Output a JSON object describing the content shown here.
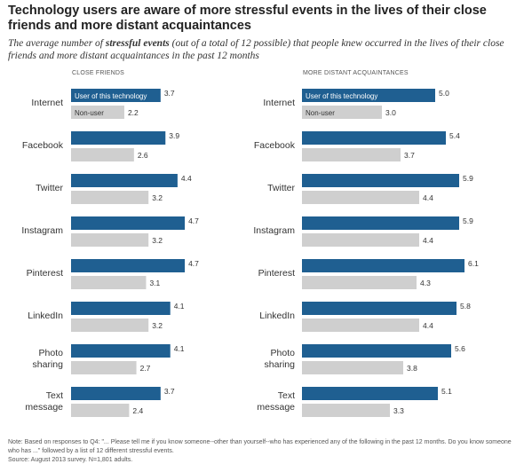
{
  "title": "Technology users are aware of more stressful events in the lives of their close friends and more distant acquaintances",
  "subtitle": {
    "pre": "The average number of ",
    "bold": "stressful events",
    "post": " (out of a total of 12 possible) that people knew occurred in the lives of their close friends and more distant acquaintances in the past 12 months"
  },
  "note": "Note: Based on responses to Q4: \"... Please tell me if you know someone--other than yourself--who has experienced any of the following in the past 12 months. Do you know someone who has ...\" followed by a list of 12 different stressful events.",
  "source": "Source: August 2013 survey. N=1,801 adults.",
  "colors": {
    "user": "#1f5f91",
    "nonuser": "#cfcfcf",
    "user_text": "#ffffff",
    "nonuser_text": "#333333"
  },
  "chart_data": [
    {
      "type": "bar",
      "orientation": "horizontal",
      "title": "CLOSE FRIENDS",
      "categories": [
        [
          "Internet"
        ],
        [
          "Facebook"
        ],
        [
          "Twitter"
        ],
        [
          "Instagram"
        ],
        [
          "Pinterest"
        ],
        [
          "LinkedIn"
        ],
        [
          "Photo",
          "sharing"
        ],
        [
          "Text",
          "message"
        ]
      ],
      "xlim": [
        0,
        6.2
      ],
      "series": [
        {
          "name": "User of this technology",
          "values": [
            3.7,
            3.9,
            4.4,
            4.7,
            4.7,
            4.1,
            4.1,
            3.7
          ]
        },
        {
          "name": "Non-user",
          "values": [
            2.2,
            2.6,
            3.2,
            3.2,
            3.1,
            3.2,
            2.7,
            2.4
          ]
        }
      ]
    },
    {
      "type": "bar",
      "orientation": "horizontal",
      "title": "MORE DISTANT ACQUAINTANCES",
      "categories": [
        [
          "Internet"
        ],
        [
          "Facebook"
        ],
        [
          "Twitter"
        ],
        [
          "Instagram"
        ],
        [
          "Pinterest"
        ],
        [
          "LinkedIn"
        ],
        [
          "Photo",
          "sharing"
        ],
        [
          "Text",
          "message"
        ]
      ],
      "xlim": [
        0,
        6.2
      ],
      "series": [
        {
          "name": "User of this technology",
          "values": [
            5.0,
            5.4,
            5.9,
            5.9,
            6.1,
            5.8,
            5.6,
            5.1
          ]
        },
        {
          "name": "Non-user",
          "values": [
            3.0,
            3.7,
            4.4,
            4.4,
            4.3,
            4.4,
            3.8,
            3.3
          ]
        }
      ]
    }
  ]
}
